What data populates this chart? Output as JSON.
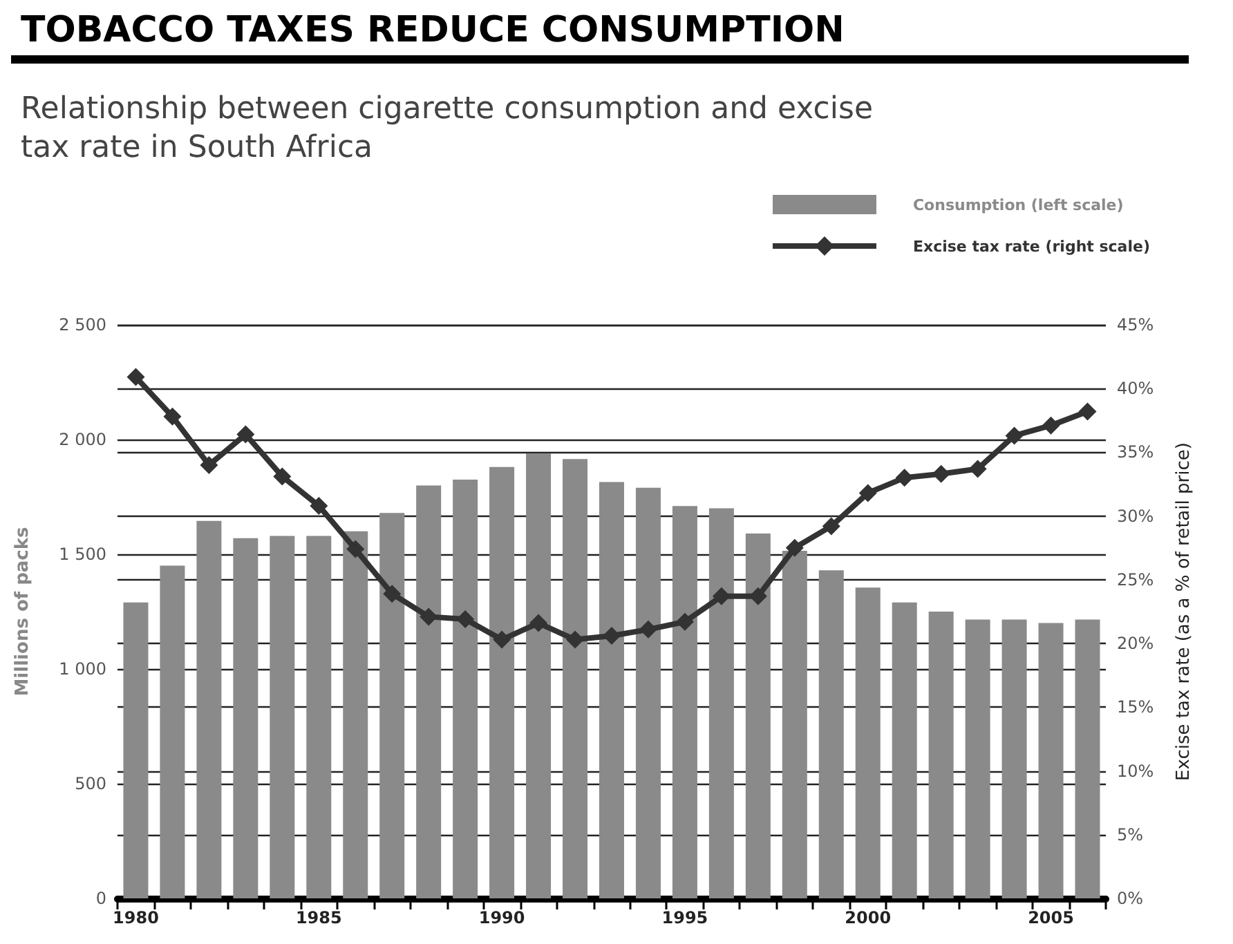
{
  "chart_data": {
    "type": "bar",
    "title": "TOBACCO TAXES REDUCE CONSUMPTION",
    "subtitle": "Relationship between cigarette consumption and excise tax rate in South Africa",
    "ylabel": "Millions of packs",
    "y2label": "Excise tax rate (as a % of retail price)",
    "categories": [
      "1980",
      null,
      null,
      null,
      null,
      "1985",
      null,
      null,
      null,
      null,
      "1990",
      null,
      null,
      null,
      null,
      "1995",
      null,
      null,
      null,
      null,
      "2000",
      null,
      null,
      null,
      null,
      "2005",
      null
    ],
    "series": [
      {
        "name": "Consumption (left scale)",
        "type": "bar",
        "color": "#8a8a8a",
        "values": [
          1290,
          1450,
          1645,
          1570,
          1580,
          1580,
          1600,
          1680,
          1800,
          1825,
          1880,
          1940,
          1915,
          1815,
          1790,
          1710,
          1700,
          1590,
          1515,
          1430,
          1355,
          1290,
          1250,
          1215,
          1215,
          1200,
          1215
        ]
      },
      {
        "name": "Excise tax rate (right scale)",
        "type": "line",
        "axis": "y2",
        "color": "#333333",
        "marker": "diamond",
        "line_style": "solid",
        "values": [
          40.9,
          37.8,
          34.0,
          36.4,
          33.1,
          30.8,
          27.4,
          23.9,
          22.1,
          21.9,
          20.3,
          21.6,
          20.3,
          20.6,
          21.1,
          21.7,
          23.7,
          23.7,
          27.5,
          29.2,
          31.8,
          33.0,
          33.3,
          33.7,
          36.3,
          37.1,
          38.2
        ]
      }
    ],
    "ylim": [
      0,
      2500
    ],
    "yticks": [
      0,
      500,
      {
        "value": 1000,
        "label": "1 000"
      },
      {
        "value": 1500,
        "label": "1 500"
      },
      {
        "value": 2000,
        "label": "2 000"
      },
      {
        "value": 2500,
        "label": "2 500"
      }
    ],
    "y2lim": [
      0,
      45
    ],
    "y2ticks": [
      {
        "value": 0,
        "label": "0%"
      },
      {
        "value": 5,
        "label": "5%"
      },
      {
        "value": 10,
        "label": "10%"
      },
      {
        "value": 15,
        "label": "15%"
      },
      {
        "value": 20,
        "label": "20%"
      },
      {
        "value": 25,
        "label": "25%"
      },
      {
        "value": 30,
        "label": "30%"
      },
      {
        "value": 35,
        "label": "35%"
      },
      {
        "value": 40,
        "label": "40%"
      },
      {
        "value": 45,
        "label": "45%"
      }
    ],
    "grid": true,
    "legend": "top right"
  }
}
